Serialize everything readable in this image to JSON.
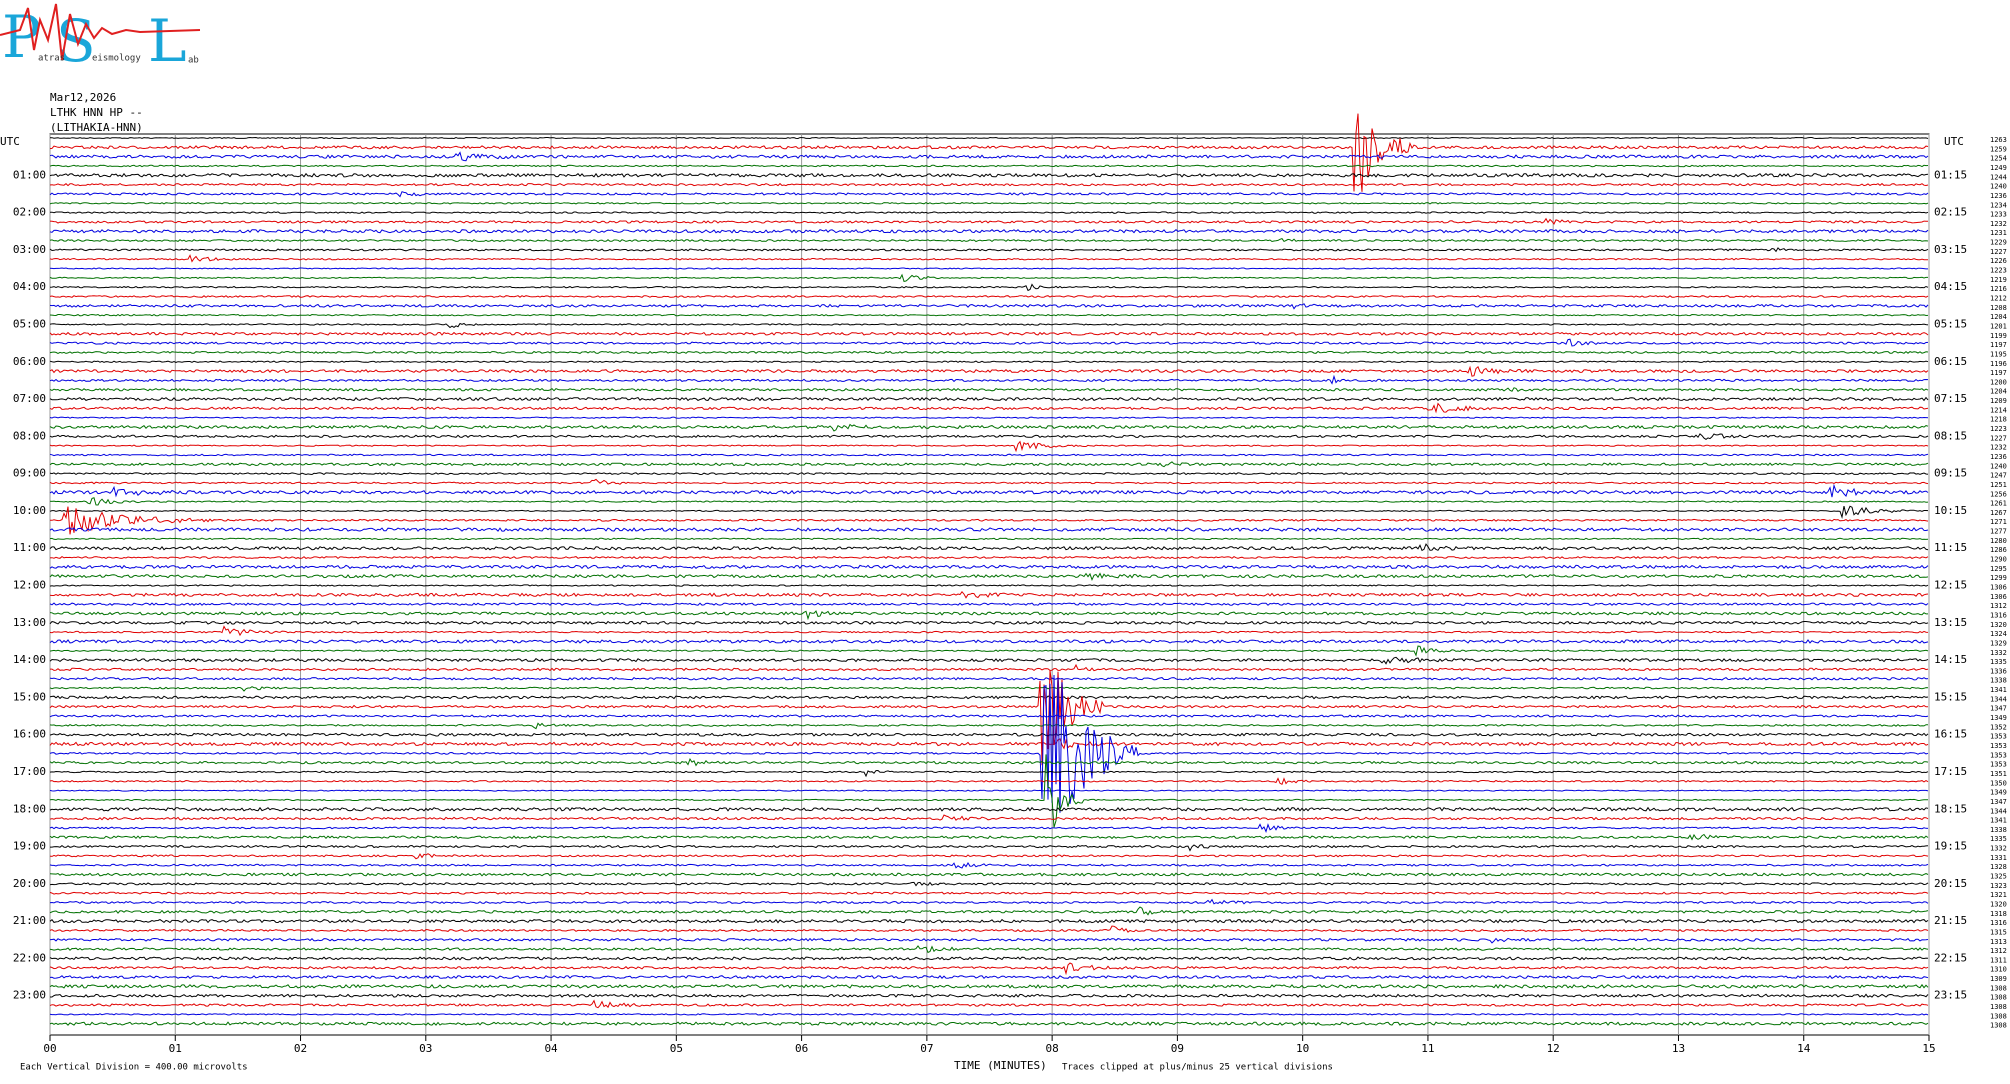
{
  "header": {
    "logo": {
      "letters": [
        "P",
        "S",
        "L"
      ],
      "words": [
        "atras",
        "eismology",
        "ab"
      ]
    },
    "date": "Mar12,2026",
    "station": "LTHK HNN HP --",
    "site": "(LITHAKIA-HNN)"
  },
  "axes": {
    "left_title": "UTC",
    "right_title": "UTC",
    "left_labels": [
      "01:00",
      "02:00",
      "03:00",
      "04:00",
      "05:00",
      "06:00",
      "07:00",
      "08:00",
      "09:00",
      "10:00",
      "11:00",
      "12:00",
      "13:00",
      "14:00",
      "15:00",
      "16:00",
      "17:00",
      "18:00",
      "19:00",
      "20:00",
      "21:00",
      "22:00",
      "23:00"
    ],
    "right_labels": [
      "01:15",
      "02:15",
      "03:15",
      "04:15",
      "05:15",
      "06:15",
      "07:15",
      "08:15",
      "09:15",
      "10:15",
      "11:15",
      "12:15",
      "13:15",
      "14:15",
      "15:15",
      "16:15",
      "17:15",
      "18:15",
      "19:15",
      "20:15",
      "21:15",
      "22:15",
      "23:15"
    ],
    "trace_labels": [
      "1263",
      "1259",
      "1254",
      "1249",
      "1244",
      "1240",
      "1236",
      "1234",
      "1233",
      "1232",
      "1231",
      "1229",
      "1227",
      "1226",
      "1223",
      "1219",
      "1216",
      "1212",
      "1208",
      "1204",
      "1201",
      "1199",
      "1197",
      "1195",
      "1196",
      "1197",
      "1200",
      "1204",
      "1209",
      "1214",
      "1218",
      "1223",
      "1227",
      "1232",
      "1236",
      "1240",
      "1247",
      "1251",
      "1256",
      "1261",
      "1267",
      "1271",
      "1277",
      "1280",
      "1286",
      "1290",
      "1295",
      "1299",
      "1306",
      "1306",
      "1312",
      "1316",
      "1320",
      "1324",
      "1329",
      "1332",
      "1335",
      "1336",
      "1338",
      "1341",
      "1344",
      "1347",
      "1349",
      "1352",
      "1353",
      "1353",
      "1353",
      "1353",
      "1351",
      "1350",
      "1349",
      "1347",
      "1344",
      "1341",
      "1338",
      "1335",
      "1332",
      "1331",
      "1328",
      "1325",
      "1323",
      "1321",
      "1320",
      "1318",
      "1316",
      "1315",
      "1313",
      "1312",
      "1311",
      "1310",
      "1309",
      "1308",
      "1308",
      "1308",
      "1308",
      "1308"
    ],
    "x_labels": [
      "00",
      "01",
      "02",
      "03",
      "04",
      "05",
      "06",
      "07",
      "08",
      "09",
      "10",
      "11",
      "12",
      "13",
      "14",
      "15"
    ],
    "x_title": "TIME (MINUTES)"
  },
  "footer": {
    "scale": "Each Vertical Division =  400.00 microvolts",
    "clip": "Traces clipped at plus/minus 25 vertical divisions"
  }
}
